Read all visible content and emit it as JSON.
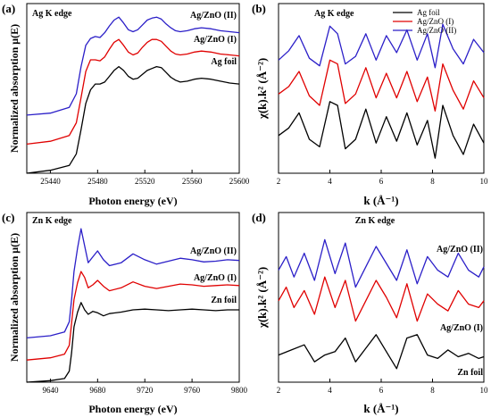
{
  "chart_data": [
    {
      "panel": "(a)",
      "type": "line",
      "inset_title": "Ag K edge",
      "xlabel": "Photon energy (eV)",
      "ylabel": "Normalized absorption μ(E)",
      "xlim": [
        25420,
        25600
      ],
      "xticks": [
        25440,
        25480,
        25520,
        25560,
        25600
      ],
      "y_ticks_labeled": false,
      "ylim": [
        0,
        1.75
      ],
      "series": [
        {
          "name": "Ag foil",
          "color": "#000000",
          "x": [
            25420,
            25440,
            25456,
            25462,
            25466,
            25470,
            25474,
            25478,
            25482,
            25486,
            25490,
            25494,
            25498,
            25502,
            25506,
            25510,
            25514,
            25518,
            25522,
            25526,
            25530,
            25534,
            25538,
            25542,
            25546,
            25550,
            25556,
            25562,
            25568,
            25576,
            25584,
            25592,
            25600
          ],
          "y": [
            0.0,
            0.03,
            0.08,
            0.2,
            0.45,
            0.72,
            0.86,
            0.92,
            0.92,
            0.94,
            1.0,
            1.06,
            1.1,
            1.06,
            1.0,
            0.97,
            0.98,
            1.02,
            1.06,
            1.08,
            1.1,
            1.09,
            1.04,
            0.99,
            0.96,
            0.94,
            0.95,
            0.97,
            0.98,
            0.97,
            0.95,
            0.93,
            0.92
          ]
        },
        {
          "name": "Ag/ZnO (I)",
          "color": "#e00000",
          "x": [
            25420,
            25440,
            25456,
            25462,
            25466,
            25470,
            25474,
            25478,
            25482,
            25486,
            25490,
            25494,
            25498,
            25502,
            25506,
            25510,
            25514,
            25518,
            25522,
            25526,
            25530,
            25534,
            25538,
            25542,
            25546,
            25550,
            25556,
            25562,
            25568,
            25576,
            25584,
            25592,
            25600
          ],
          "y": [
            0.3,
            0.33,
            0.39,
            0.52,
            0.78,
            1.05,
            1.17,
            1.17,
            1.16,
            1.2,
            1.28,
            1.35,
            1.38,
            1.32,
            1.25,
            1.22,
            1.24,
            1.3,
            1.35,
            1.38,
            1.38,
            1.36,
            1.31,
            1.26,
            1.23,
            1.22,
            1.23,
            1.25,
            1.26,
            1.25,
            1.23,
            1.22,
            1.21
          ]
        },
        {
          "name": "Ag/ZnO (II)",
          "color": "#2b1fc8",
          "x": [
            25420,
            25440,
            25456,
            25462,
            25466,
            25470,
            25474,
            25478,
            25482,
            25486,
            25490,
            25494,
            25498,
            25502,
            25506,
            25510,
            25514,
            25518,
            25522,
            25526,
            25530,
            25534,
            25538,
            25542,
            25546,
            25550,
            25556,
            25562,
            25568,
            25576,
            25584,
            25592,
            25600
          ],
          "y": [
            0.6,
            0.62,
            0.68,
            0.82,
            1.1,
            1.32,
            1.39,
            1.41,
            1.4,
            1.45,
            1.52,
            1.58,
            1.61,
            1.55,
            1.48,
            1.46,
            1.48,
            1.53,
            1.58,
            1.6,
            1.61,
            1.59,
            1.54,
            1.5,
            1.47,
            1.46,
            1.47,
            1.49,
            1.5,
            1.49,
            1.47,
            1.46,
            1.45
          ]
        }
      ],
      "annotations": [
        "Ag/ZnO (II)",
        "Ag/ZnO (I)",
        "Ag foil"
      ]
    },
    {
      "panel": "(b)",
      "type": "line",
      "inset_title": "Ag K edge",
      "xlabel": "k (Å⁻¹)",
      "ylabel": "χ(k).k² (Å⁻²)",
      "xlim": [
        2,
        10
      ],
      "xticks": [
        2,
        4,
        6,
        8,
        10
      ],
      "y_ticks_labeled": false,
      "ylim": [
        -1,
        8
      ],
      "legend": "top-right",
      "series": [
        {
          "name": "Ag foil",
          "color": "#000000",
          "x": [
            2,
            2.4,
            2.8,
            3.2,
            3.6,
            4.0,
            4.3,
            4.6,
            5.0,
            5.4,
            5.8,
            6.2,
            6.6,
            7.0,
            7.4,
            7.8,
            8.1,
            8.4,
            8.8,
            9.2,
            9.6,
            10
          ],
          "y": [
            1.0,
            1.4,
            2.2,
            0.8,
            0.4,
            2.8,
            2.6,
            0.3,
            0.8,
            2.4,
            0.6,
            2.0,
            0.7,
            2.2,
            0.5,
            1.8,
            -0.2,
            2.6,
            1.0,
            0.0,
            1.6,
            0.6
          ]
        },
        {
          "name": "Ag/ZnO (I)",
          "color": "#e00000",
          "x": [
            2,
            2.4,
            2.8,
            3.2,
            3.6,
            4.0,
            4.3,
            4.6,
            5.0,
            5.4,
            5.8,
            6.2,
            6.6,
            7.0,
            7.4,
            7.8,
            8.1,
            8.4,
            8.8,
            9.2,
            9.6,
            10
          ],
          "y": [
            3.2,
            3.6,
            4.4,
            3.1,
            2.6,
            5.0,
            4.8,
            2.7,
            3.2,
            4.6,
            3.0,
            4.3,
            3.0,
            4.4,
            2.8,
            4.1,
            2.3,
            4.8,
            3.4,
            2.4,
            3.9,
            3.0
          ]
        },
        {
          "name": "Ag/ZnO (II)",
          "color": "#2b1fc8",
          "x": [
            2,
            2.4,
            2.8,
            3.2,
            3.6,
            4.0,
            4.3,
            4.6,
            5.0,
            5.4,
            5.8,
            6.2,
            6.6,
            7.0,
            7.4,
            7.8,
            8.1,
            8.4,
            8.8,
            9.2,
            9.6,
            10
          ],
          "y": [
            5.0,
            5.5,
            6.3,
            5.1,
            4.7,
            6.8,
            6.4,
            4.8,
            5.2,
            6.4,
            5.0,
            6.3,
            5.4,
            6.6,
            5.0,
            6.4,
            4.6,
            6.9,
            5.6,
            4.8,
            6.1,
            5.4
          ]
        }
      ]
    },
    {
      "panel": "(c)",
      "type": "line",
      "inset_title": "Zn K edge",
      "xlabel": "Photon energy (eV)",
      "ylabel": "Normalized absorption μ(E)",
      "xlim": [
        9620,
        9800
      ],
      "xticks": [
        9640,
        9680,
        9720,
        9760,
        9800
      ],
      "y_ticks_labeled": false,
      "ylim": [
        0,
        2.3
      ],
      "series": [
        {
          "name": "Zn foil",
          "color": "#000000",
          "x": [
            9620,
            9640,
            9652,
            9656,
            9658,
            9660,
            9663,
            9666,
            9669,
            9672,
            9676,
            9680,
            9685,
            9690,
            9700,
            9710,
            9720,
            9730,
            9740,
            9750,
            9760,
            9770,
            9780,
            9790,
            9800
          ],
          "y": [
            0.0,
            0.02,
            0.05,
            0.15,
            0.4,
            0.75,
            0.95,
            1.08,
            0.98,
            0.92,
            0.96,
            0.94,
            0.9,
            0.93,
            0.95,
            0.98,
            0.99,
            0.98,
            0.97,
            0.98,
            0.99,
            0.98,
            0.97,
            0.98,
            0.98
          ]
        },
        {
          "name": "Ag/ZnO (I)",
          "color": "#e00000",
          "x": [
            9620,
            9640,
            9652,
            9656,
            9658,
            9660,
            9663,
            9666,
            9669,
            9672,
            9676,
            9680,
            9685,
            9690,
            9700,
            9710,
            9720,
            9730,
            9740,
            9750,
            9760,
            9770,
            9780,
            9790,
            9800
          ],
          "y": [
            0.3,
            0.33,
            0.38,
            0.5,
            0.8,
            1.12,
            1.35,
            1.5,
            1.42,
            1.28,
            1.32,
            1.38,
            1.3,
            1.24,
            1.28,
            1.36,
            1.3,
            1.27,
            1.3,
            1.33,
            1.32,
            1.3,
            1.31,
            1.32,
            1.31
          ]
        },
        {
          "name": "Ag/ZnO (II)",
          "color": "#2b1fc8",
          "x": [
            9620,
            9640,
            9652,
            9656,
            9658,
            9660,
            9663,
            9666,
            9669,
            9672,
            9676,
            9680,
            9685,
            9690,
            9700,
            9710,
            9720,
            9730,
            9740,
            9750,
            9760,
            9770,
            9780,
            9790,
            9800
          ],
          "y": [
            0.6,
            0.63,
            0.68,
            0.82,
            1.12,
            1.5,
            1.82,
            2.08,
            1.85,
            1.62,
            1.7,
            1.78,
            1.66,
            1.58,
            1.62,
            1.74,
            1.66,
            1.6,
            1.64,
            1.68,
            1.66,
            1.63,
            1.64,
            1.66,
            1.65
          ]
        }
      ],
      "annotations": [
        "Ag/ZnO (II)",
        "Ag/ZnO (I)",
        "Zn foil"
      ]
    },
    {
      "panel": "(d)",
      "type": "line",
      "inset_title": "Zn K edge",
      "xlabel": "k (Å⁻¹)",
      "ylabel": "χ(k).k² (Å⁻²)",
      "xlim": [
        2,
        10
      ],
      "xticks": [
        2,
        4,
        6,
        8,
        10
      ],
      "y_ticks_labeled": false,
      "ylim": [
        -1,
        9
      ],
      "series": [
        {
          "name": "Zn foil",
          "color": "#000000",
          "x": [
            2,
            2.5,
            3.0,
            3.4,
            3.8,
            4.2,
            4.6,
            5.0,
            5.4,
            5.8,
            6.2,
            6.6,
            7.0,
            7.4,
            7.8,
            8.2,
            8.6,
            9.0,
            9.4,
            9.8,
            10
          ],
          "y": [
            0.6,
            0.9,
            1.2,
            0.2,
            0.6,
            0.8,
            1.6,
            0.2,
            1.0,
            1.8,
            0.8,
            -0.2,
            1.6,
            1.8,
            0.6,
            0.4,
            0.9,
            0.5,
            0.7,
            0.4,
            0.5
          ]
        },
        {
          "name": "Ag/ZnO (I)",
          "color": "#e00000",
          "x": [
            2,
            2.3,
            2.6,
            3.0,
            3.4,
            3.8,
            4.2,
            4.6,
            5.0,
            5.4,
            5.8,
            6.2,
            6.6,
            7.0,
            7.4,
            7.8,
            8.2,
            8.6,
            9.0,
            9.4,
            9.8,
            10
          ],
          "y": [
            3.8,
            4.6,
            3.4,
            4.4,
            3.0,
            5.2,
            3.4,
            5.0,
            2.6,
            3.8,
            5.0,
            4.0,
            2.8,
            4.8,
            2.6,
            4.2,
            3.6,
            3.2,
            4.4,
            3.6,
            3.4,
            3.8
          ]
        },
        {
          "name": "Ag/ZnO (II)",
          "color": "#2b1fc8",
          "x": [
            2,
            2.3,
            2.6,
            3.0,
            3.4,
            3.8,
            4.2,
            4.6,
            5.0,
            5.4,
            5.8,
            6.2,
            6.6,
            7.0,
            7.4,
            7.8,
            8.2,
            8.6,
            9.0,
            9.4,
            9.8,
            10
          ],
          "y": [
            5.6,
            6.4,
            5.2,
            6.6,
            5.0,
            7.4,
            5.4,
            7.2,
            4.6,
            5.8,
            7.0,
            6.0,
            5.0,
            6.8,
            4.8,
            6.4,
            5.6,
            5.2,
            6.6,
            5.6,
            5.2,
            5.8
          ]
        }
      ],
      "annotations": [
        "Ag/ZnO (II)",
        "Ag/ZnO (I)",
        "Zn foil"
      ]
    }
  ]
}
